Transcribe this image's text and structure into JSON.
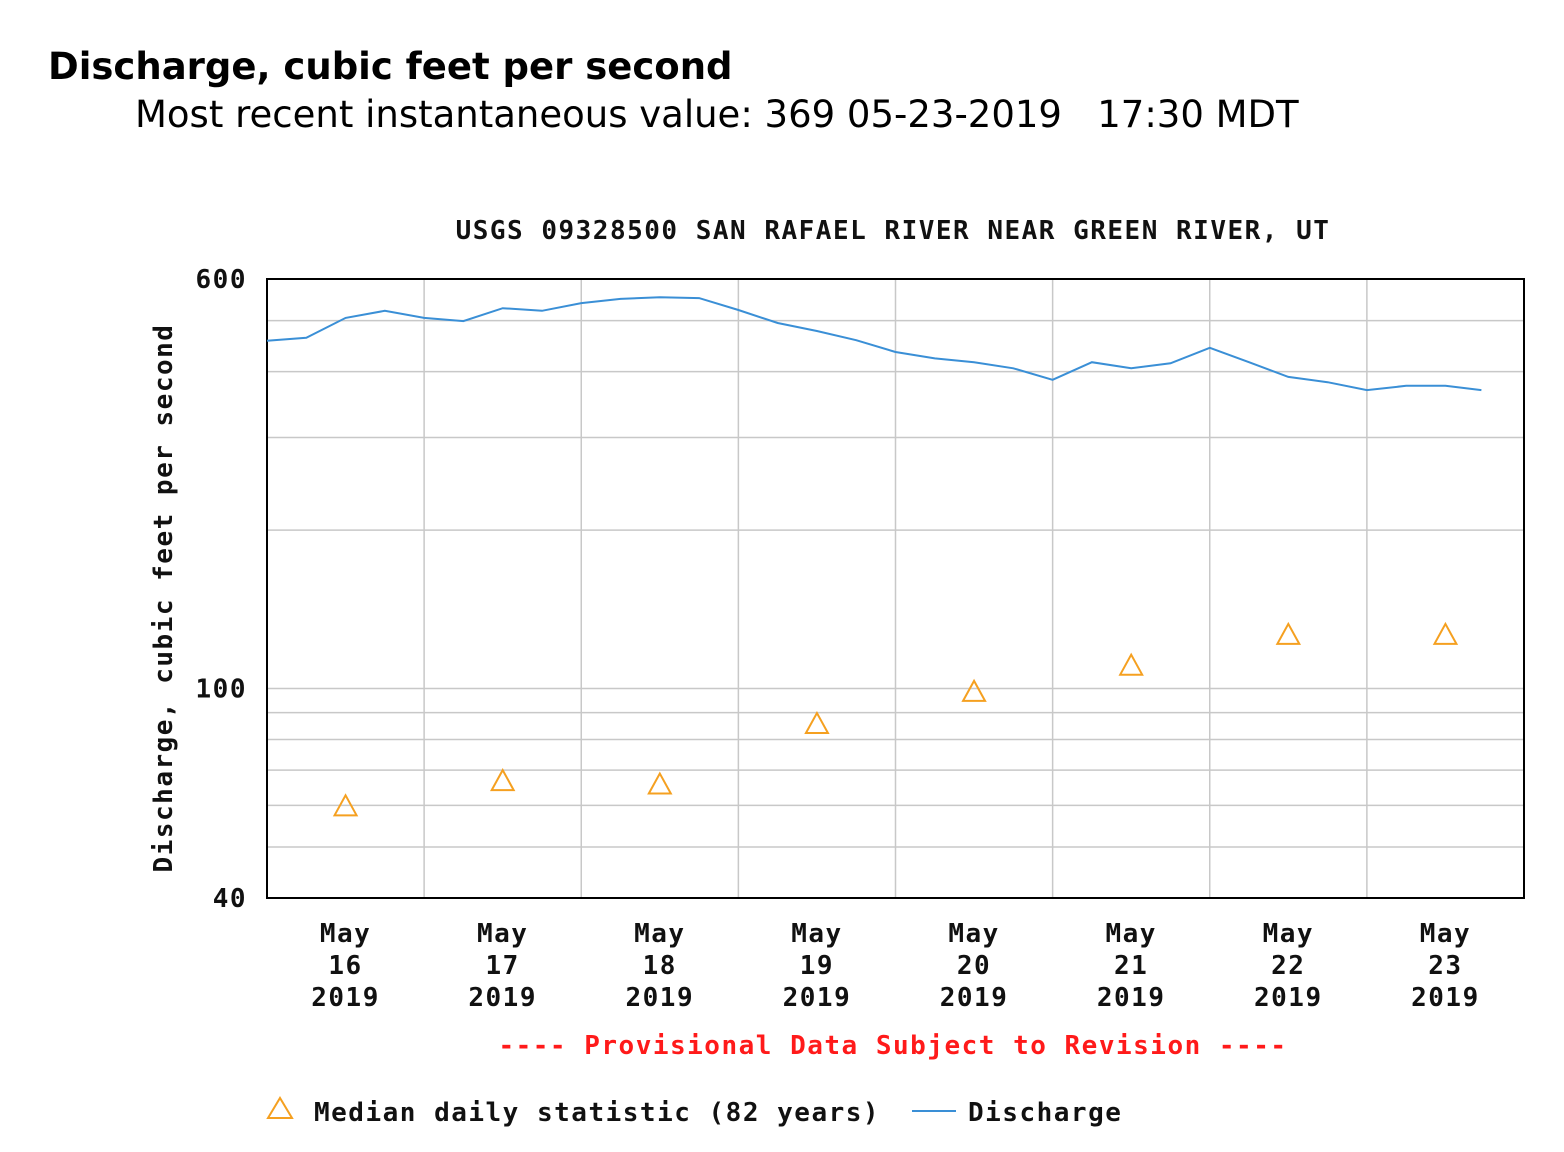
{
  "header": {
    "title": "Discharge, cubic feet per second",
    "subtitle": "Most recent instantaneous value: 369 05-23-2019   17:30 MDT"
  },
  "chart_data": {
    "type": "line",
    "title": "USGS 09328500 SAN RAFAEL RIVER NEAR GREEN RIVER, UT",
    "y_label": "Discharge, cubic feet per second",
    "note": "---- Provisional Data Subject to Revision ----",
    "log_y": true,
    "grid": true,
    "ylim": [
      40,
      600
    ],
    "yticks": [
      40,
      100,
      600
    ],
    "yminor": [
      50,
      60,
      70,
      80,
      90,
      200,
      300,
      400,
      500
    ],
    "xlim": [
      "2019-05-16T00:00",
      "2019-05-24T00:00"
    ],
    "xticks": [
      {
        "value": "2019-05-16T12:00",
        "label": "May 16 2019"
      },
      {
        "value": "2019-05-17T12:00",
        "label": "May 17 2019"
      },
      {
        "value": "2019-05-18T12:00",
        "label": "May 18 2019"
      },
      {
        "value": "2019-05-19T12:00",
        "label": "May 19 2019"
      },
      {
        "value": "2019-05-20T12:00",
        "label": "May 20 2019"
      },
      {
        "value": "2019-05-21T12:00",
        "label": "May 21 2019"
      },
      {
        "value": "2019-05-22T12:00",
        "label": "May 22 2019"
      },
      {
        "value": "2019-05-23T12:00",
        "label": "May 23 2019"
      }
    ],
    "xminor": [
      "2019-05-17T00:00",
      "2019-05-18T00:00",
      "2019-05-19T00:00",
      "2019-05-20T00:00",
      "2019-05-21T00:00",
      "2019-05-22T00:00",
      "2019-05-23T00:00"
    ],
    "series": [
      {
        "name": "Median daily statistic (82 years)",
        "color": "#f5a020",
        "marker": "triangle",
        "x": [
          "2019-05-16T12:00",
          "2019-05-17T12:00",
          "2019-05-18T12:00",
          "2019-05-19T12:00",
          "2019-05-20T12:00",
          "2019-05-21T12:00",
          "2019-05-22T12:00",
          "2019-05-23T12:00"
        ],
        "values": [
          60,
          67,
          66,
          86,
          99,
          111,
          127,
          127
        ]
      },
      {
        "name": "Discharge",
        "color": "#3a8fd6",
        "marker": "line",
        "x": [
          "2019-05-16T00:00",
          "2019-05-16T06:00",
          "2019-05-16T12:00",
          "2019-05-16T18:00",
          "2019-05-17T00:00",
          "2019-05-17T06:00",
          "2019-05-17T12:00",
          "2019-05-17T18:00",
          "2019-05-18T00:00",
          "2019-05-18T06:00",
          "2019-05-18T12:00",
          "2019-05-18T18:00",
          "2019-05-19T00:00",
          "2019-05-19T06:00",
          "2019-05-19T12:00",
          "2019-05-19T18:00",
          "2019-05-20T00:00",
          "2019-05-20T06:00",
          "2019-05-20T12:00",
          "2019-05-20T18:00",
          "2019-05-21T00:00",
          "2019-05-21T06:00",
          "2019-05-21T12:00",
          "2019-05-21T18:00",
          "2019-05-22T00:00",
          "2019-05-22T06:00",
          "2019-05-22T12:00",
          "2019-05-22T18:00",
          "2019-05-23T00:00",
          "2019-05-23T06:00",
          "2019-05-23T12:00",
          "2019-05-23T17:30"
        ],
        "values": [
          458,
          464,
          506,
          522,
          506,
          499,
          528,
          522,
          540,
          550,
          554,
          552,
          524,
          495,
          478,
          459,
          436,
          424,
          417,
          406,
          386,
          417,
          406,
          415,
          444,
          417,
          391,
          382,
          369,
          376,
          376,
          369
        ]
      }
    ]
  }
}
